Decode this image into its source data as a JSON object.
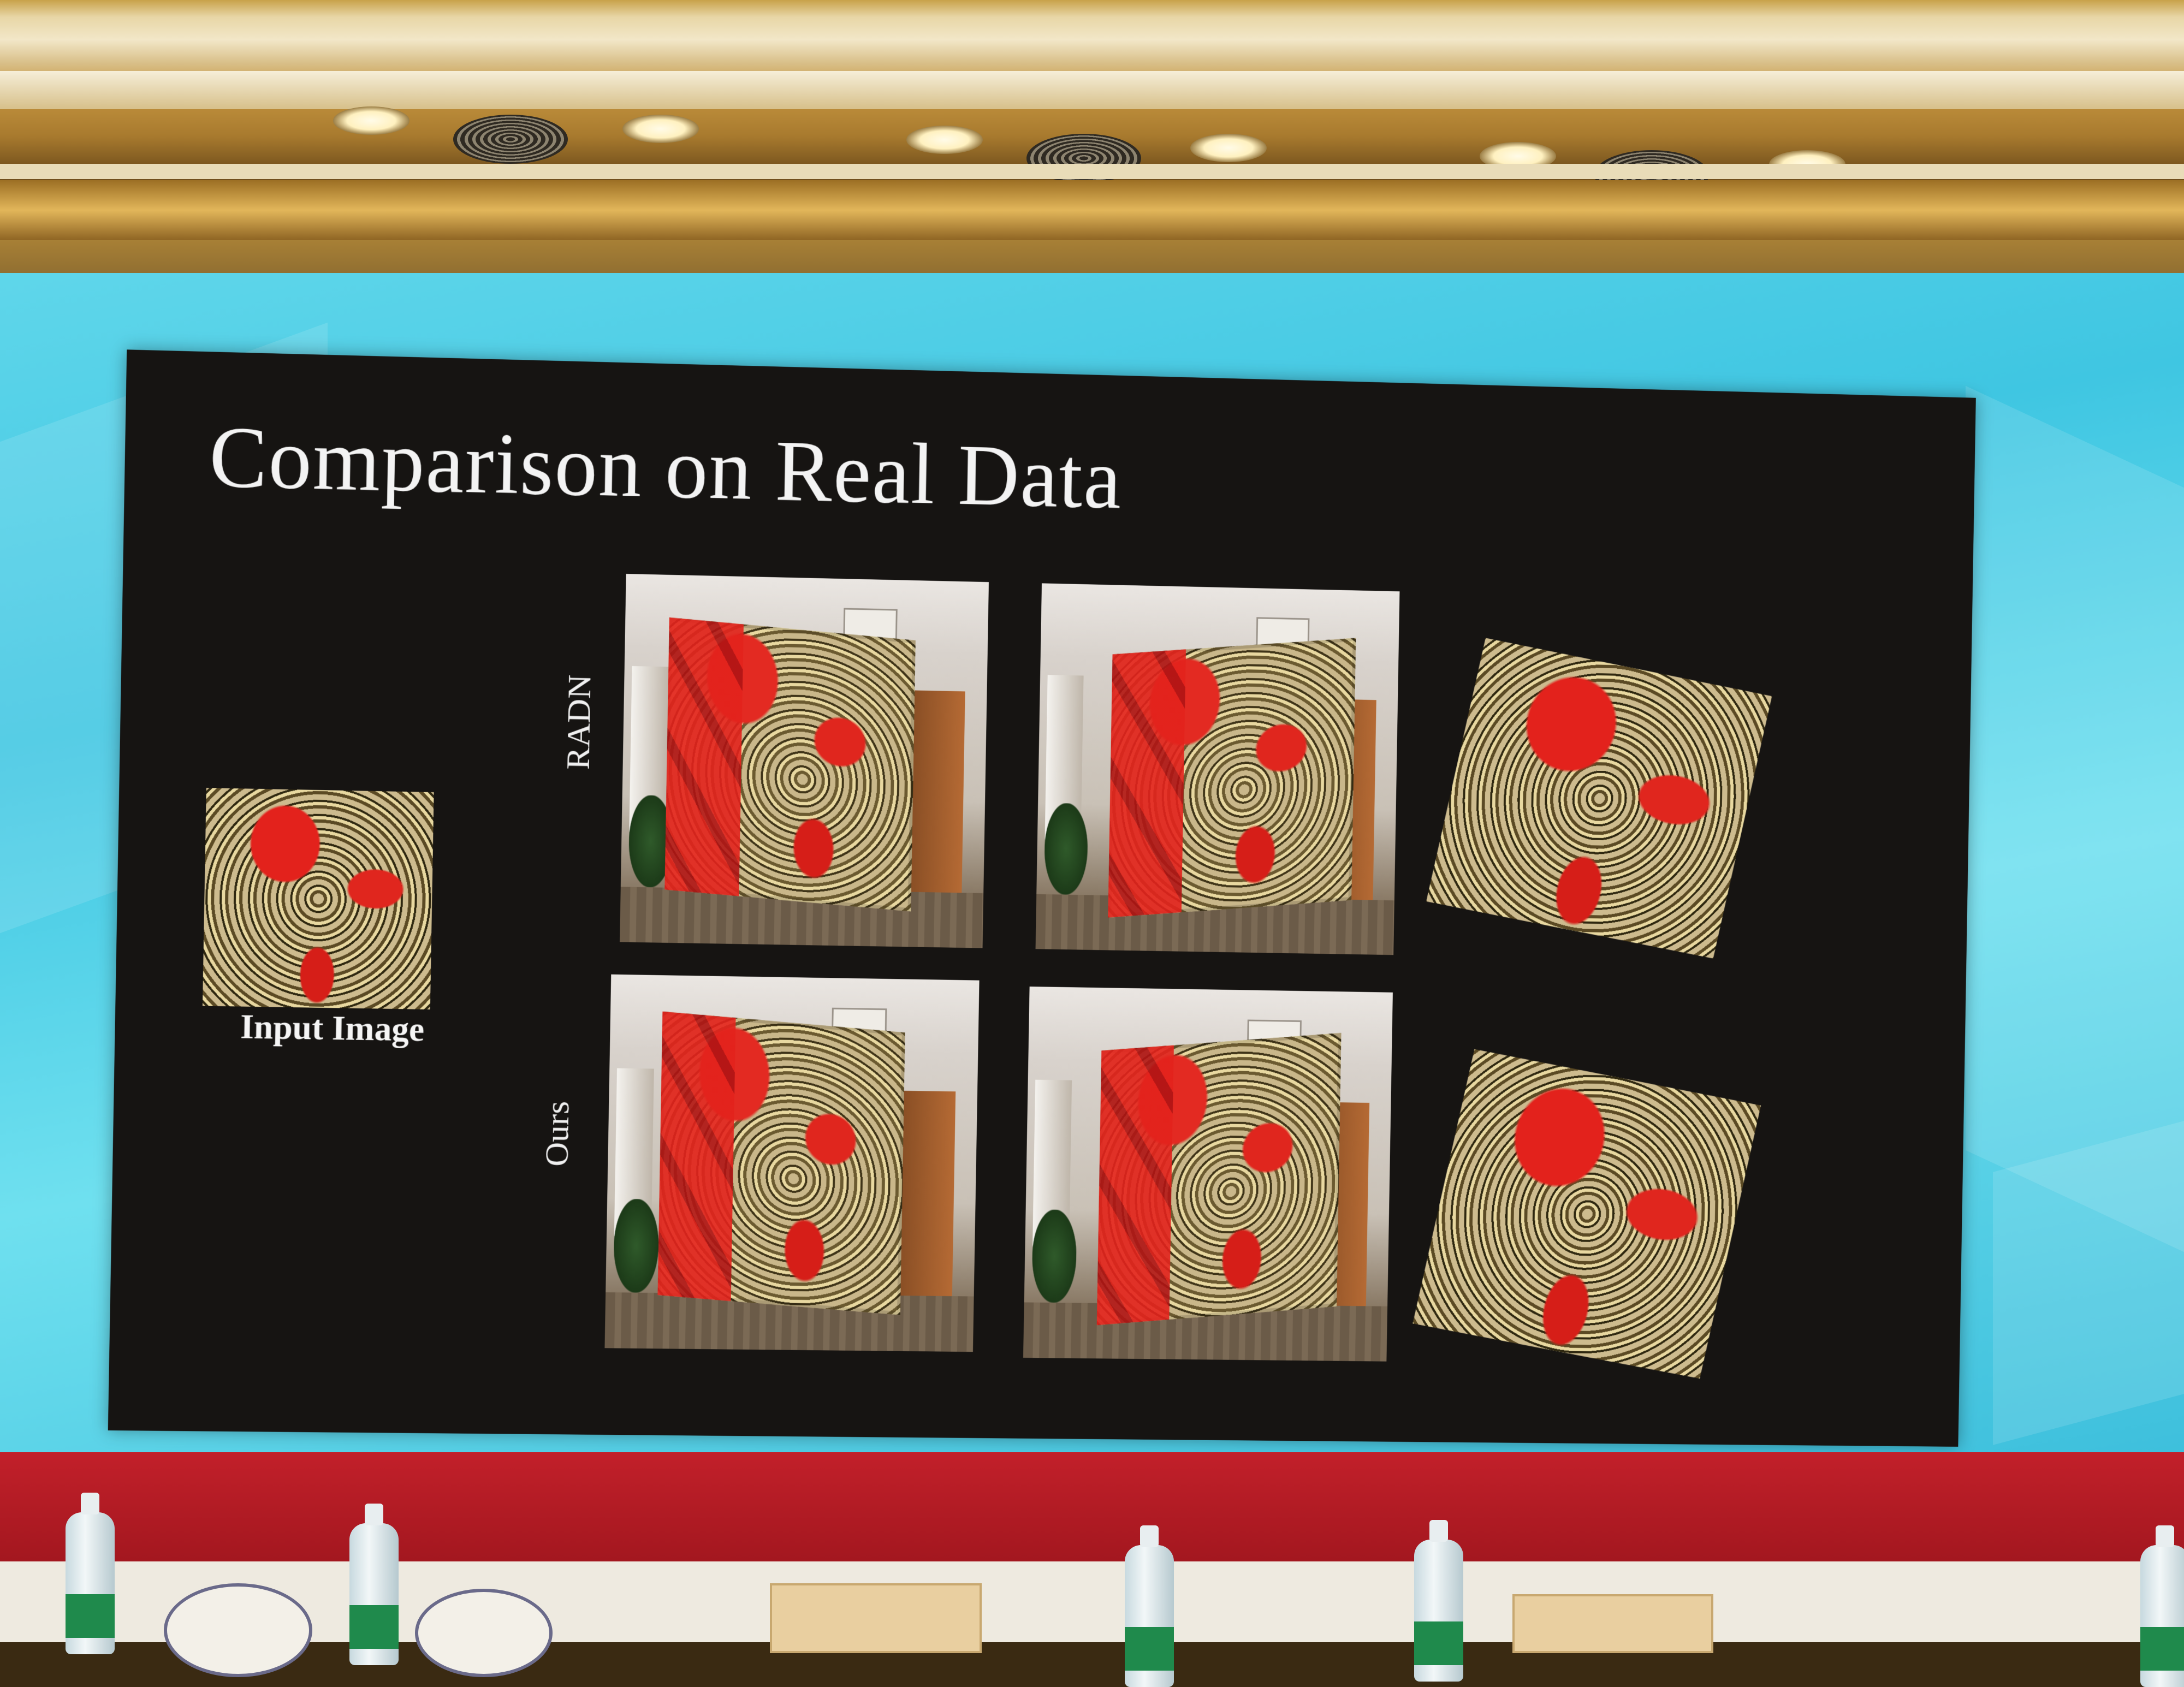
{
  "slide": {
    "title": "Comparison on Real Data",
    "input_caption": "Input Image",
    "row_labels": [
      "RADN",
      "Ours"
    ]
  },
  "colors": {
    "slide_background": "#161412",
    "led_wall": "#3fc6e2",
    "stage_band": "#c2202a",
    "pattern_red": "#e3221c",
    "pattern_gold": "#cdbb8e"
  }
}
